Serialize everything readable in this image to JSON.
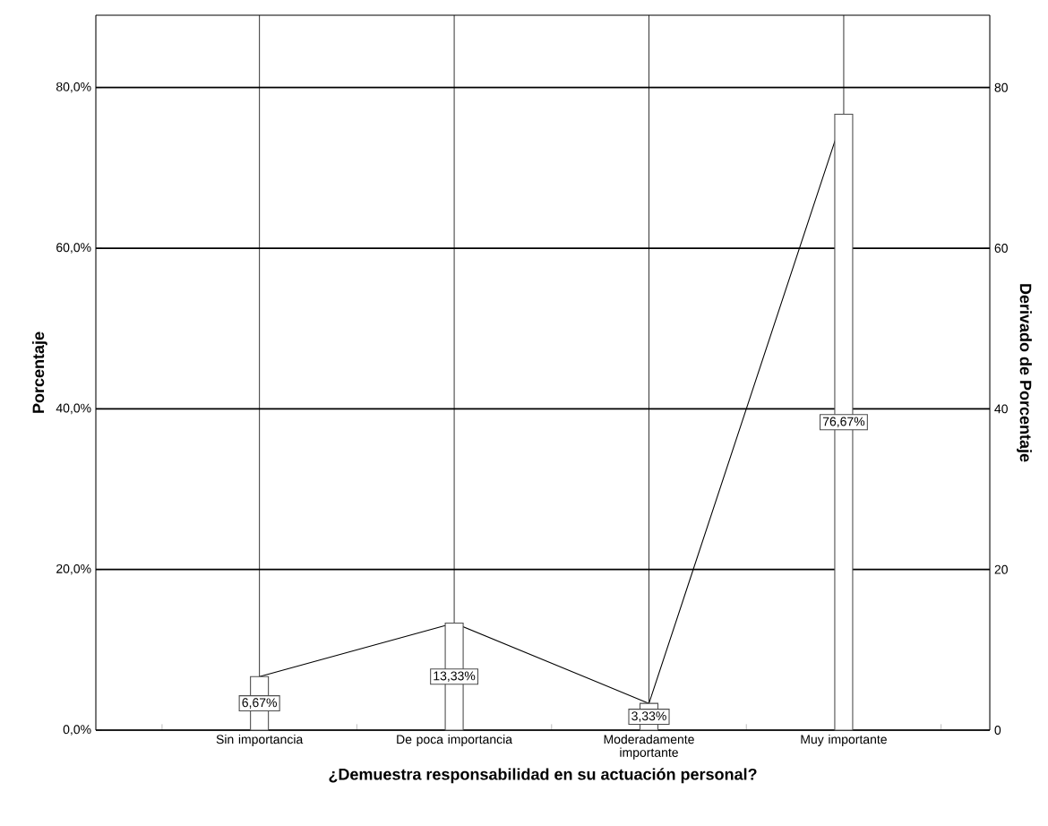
{
  "chart_data": {
    "type": "bar",
    "xlabel": "¿Demuestra responsabilidad en su actuación personal?",
    "ylabel": "Porcentaje",
    "y2label": "Derivado de Porcentaje",
    "categories": [
      "Sin importancia",
      "De poca importancia",
      "Moderadamente importante",
      "Muy importante"
    ],
    "series": [
      {
        "type": "bar",
        "color": "#ffffff",
        "values": [
          6.67,
          13.33,
          3.33,
          76.67
        ],
        "value_labels": [
          "6,67%",
          "13,33%",
          "3,33%",
          "76,67%"
        ]
      },
      {
        "type": "line",
        "axis": "y2",
        "color": "#000000",
        "values": [
          6.67,
          13.33,
          3.33,
          76.67
        ]
      }
    ],
    "ylim": [
      0,
      89
    ],
    "yticks": [
      {
        "value": 0,
        "label": "0,0%"
      },
      {
        "value": 20,
        "label": "20,0%"
      },
      {
        "value": 40,
        "label": "40,0%"
      },
      {
        "value": 60,
        "label": "60,0%"
      },
      {
        "value": 80,
        "label": "80,0%"
      }
    ],
    "y2lim": [
      0,
      89
    ],
    "y2ticks": [
      0,
      20,
      40,
      60,
      80
    ],
    "grid": true,
    "legend": false,
    "marker": "none",
    "line_style": "solid"
  }
}
